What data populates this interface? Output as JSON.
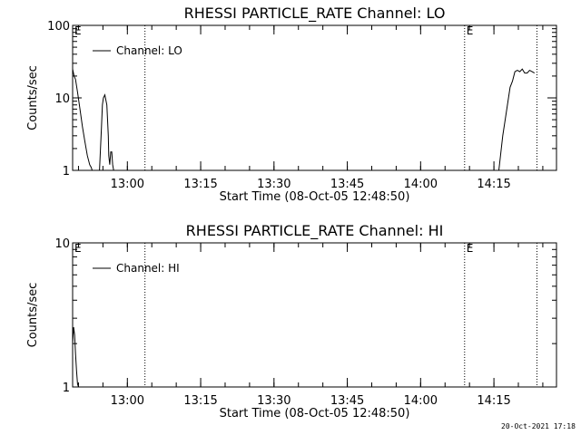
{
  "colors": {
    "background": "#ffffff",
    "foreground": "#000000"
  },
  "timestamp": "20-Oct-2021 17:18",
  "chart_data": [
    {
      "type": "line",
      "title": "RHESSI PARTICLE_RATE Channel: LO",
      "xlabel": "Start Time (08-Oct-05 12:48:50)",
      "ylabel": "Counts/sec",
      "y_scale": "log",
      "ylim": [
        1,
        100
      ],
      "y_ticks": [
        {
          "value": 1,
          "label": "1"
        },
        {
          "value": 10,
          "label": "10"
        },
        {
          "value": 100,
          "label": "100"
        }
      ],
      "xlim_minutes": [
        0,
        99
      ],
      "x_ticks": [
        {
          "value": 11.2,
          "label": "13:00"
        },
        {
          "value": 26.2,
          "label": "13:15"
        },
        {
          "value": 41.2,
          "label": "13:30"
        },
        {
          "value": 56.2,
          "label": "13:45"
        },
        {
          "value": 71.2,
          "label": "14:00"
        },
        {
          "value": 86.2,
          "label": "14:15"
        }
      ],
      "vertical_lines": [
        {
          "x": 14.8,
          "label": ""
        },
        {
          "x": 80.2,
          "label": "E"
        },
        {
          "x": 95.0,
          "label": ""
        }
      ],
      "left_marker": "E",
      "legend": {
        "position": "top-left",
        "entries": [
          "Channel: LO"
        ]
      },
      "series": [
        {
          "name": "Channel: LO",
          "x": [
            0,
            0.3,
            0.6,
            1.0,
            1.5,
            2.0,
            2.5,
            3.0,
            3.5,
            3.8,
            4.0,
            5.5,
            5.9,
            6.1,
            6.3,
            6.6,
            7.0,
            7.3,
            7.4,
            7.6,
            7.8,
            8.0,
            8.2,
            8.4,
            8.5
          ],
          "y": [
            25,
            20,
            18,
            12,
            7,
            4,
            2.5,
            1.6,
            1.2,
            1.1,
            1,
            1,
            4,
            8,
            10,
            11,
            8,
            3,
            1.6,
            1.2,
            1.8,
            1.8,
            1.2,
            1.0,
            1.0
          ]
        },
        {
          "name": "Channel: LO",
          "x": [
            87.2,
            88.0,
            88.5,
            89.5,
            90.0,
            90.5,
            91.0,
            91.5,
            92.0,
            92.5,
            93.0,
            93.5,
            94.0,
            94.5
          ],
          "y": [
            1,
            3,
            5,
            14,
            17,
            23,
            24,
            23,
            25,
            22,
            22,
            24,
            23,
            22
          ]
        }
      ]
    },
    {
      "type": "line",
      "title": "RHESSI PARTICLE_RATE Channel: HI",
      "xlabel": "Start Time (08-Oct-05 12:48:50)",
      "ylabel": "Counts/sec",
      "y_scale": "log",
      "ylim": [
        1,
        10
      ],
      "y_ticks": [
        {
          "value": 1,
          "label": "1"
        },
        {
          "value": 10,
          "label": "10"
        }
      ],
      "xlim_minutes": [
        0,
        99
      ],
      "x_ticks": [
        {
          "value": 11.2,
          "label": "13:00"
        },
        {
          "value": 26.2,
          "label": "13:15"
        },
        {
          "value": 41.2,
          "label": "13:30"
        },
        {
          "value": 56.2,
          "label": "13:45"
        },
        {
          "value": 71.2,
          "label": "14:00"
        },
        {
          "value": 86.2,
          "label": "14:15"
        }
      ],
      "vertical_lines": [
        {
          "x": 14.8,
          "label": ""
        },
        {
          "x": 80.2,
          "label": "E"
        },
        {
          "x": 95.0,
          "label": ""
        }
      ],
      "left_marker": "E",
      "legend": {
        "position": "top-left",
        "entries": [
          "Channel: HI"
        ]
      },
      "series": [
        {
          "name": "Channel: HI",
          "x": [
            0,
            0.2,
            0.4,
            0.6,
            0.8,
            1.0,
            1.2
          ],
          "y": [
            2.0,
            2.6,
            2.3,
            1.7,
            1.3,
            1.05,
            1.0
          ]
        }
      ]
    }
  ]
}
